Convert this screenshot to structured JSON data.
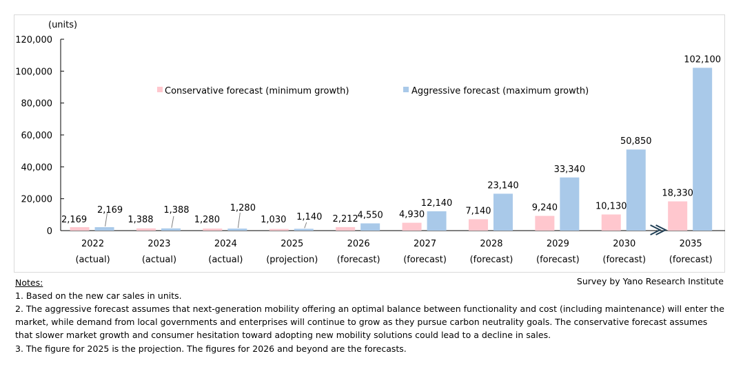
{
  "chart_data": {
    "type": "bar",
    "ylabel": "(units)",
    "ylim": [
      0,
      120000
    ],
    "yticks": [
      "0",
      "20,000",
      "40,000",
      "60,000",
      "80,000",
      "100,000",
      "120,000"
    ],
    "categories": [
      {
        "year": "2022",
        "status": "(actual)"
      },
      {
        "year": "2023",
        "status": "(actual)"
      },
      {
        "year": "2024",
        "status": "(actual)"
      },
      {
        "year": "2025",
        "status": "(projection)"
      },
      {
        "year": "2026",
        "status": "(forecast)"
      },
      {
        "year": "2027",
        "status": "(forecast)"
      },
      {
        "year": "2028",
        "status": "(forecast)"
      },
      {
        "year": "2029",
        "status": "(forecast)"
      },
      {
        "year": "2030",
        "status": "(forecast)"
      },
      {
        "year": "2035",
        "status": "(forecast)"
      }
    ],
    "series": [
      {
        "name": "Conservative forecast (minimum growth)",
        "color": "#ffc7ce",
        "values": [
          2169,
          1388,
          1280,
          1030,
          2212,
          4930,
          7140,
          9240,
          10130,
          18330
        ],
        "labels": [
          "2,169",
          "1,388",
          "1,280",
          "1,030",
          "2,212",
          "4,930",
          "7,140",
          "9,240",
          "10,130",
          "18,330"
        ]
      },
      {
        "name": "Aggressive forecast (maximum growth)",
        "color": "#a9c9e9",
        "values": [
          2169,
          1388,
          1280,
          1140,
          4550,
          12140,
          23140,
          33340,
          50850,
          102100
        ],
        "labels": [
          "2,169",
          "1,388",
          "1,280",
          "1,140",
          "4,550",
          "12,140",
          "23,140",
          "33,340",
          "50,850",
          "102,100"
        ]
      }
    ],
    "legend_position": "top-center",
    "axis_break": "between 2030 and 2035",
    "grid": false
  },
  "notes": {
    "title": "Notes:",
    "items": [
      "1.  Based on the new car sales in units.",
      "2.  The aggressive forecast assumes that next-generation mobility offering an optimal balance between functionality and cost (including maintenance) will enter the market, while demand from local governments and enterprises will continue to grow as they pursue carbon neutrality goals. The conservative forecast assumes that slower market growth and consumer hesitation toward adopting new mobility solutions could lead to a decline in sales.",
      "3.  The figure for 2025 is the projection. The figures for 2026 and beyond are the forecasts."
    ]
  },
  "source": "Survey by Yano Research Institute"
}
